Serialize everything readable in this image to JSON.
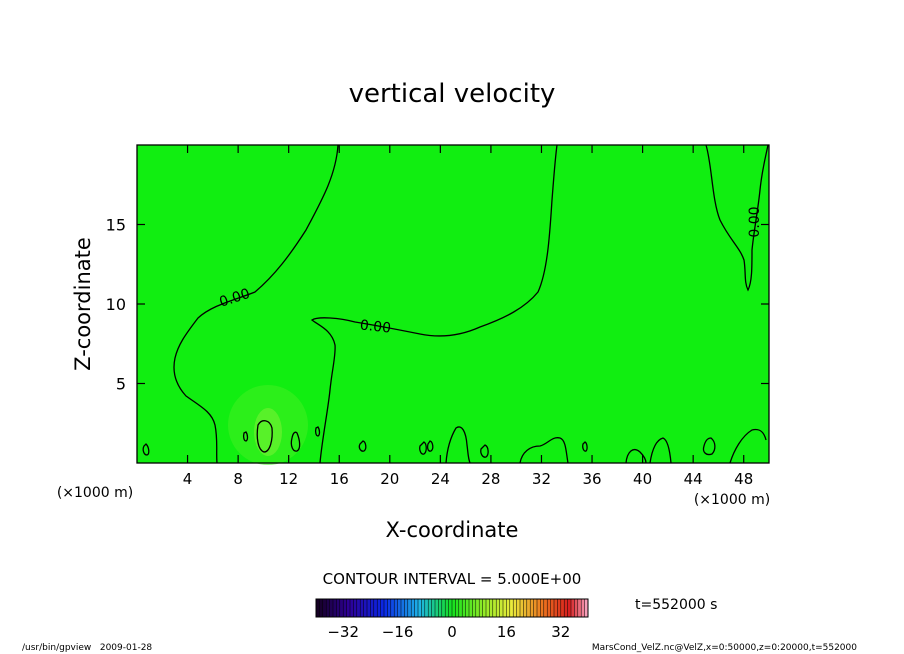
{
  "chart_data": {
    "type": "heatmap",
    "title": "vertical velocity",
    "xlabel": "X-coordinate",
    "ylabel": "Z-coordinate",
    "x_unit_left": "(×1000 m)",
    "x_unit_right": "(×1000 m)",
    "xlim": [
      0,
      50
    ],
    "ylim": [
      0,
      20
    ],
    "x_ticks": [
      4,
      8,
      12,
      16,
      20,
      24,
      28,
      32,
      36,
      40,
      44,
      48
    ],
    "x_tick_labels": [
      "4",
      "8",
      "12",
      "16",
      "20",
      "24",
      "28",
      "32",
      "36",
      "40",
      "44",
      "48"
    ],
    "y_ticks": [
      5,
      10,
      15
    ],
    "y_tick_labels": [
      "5",
      "10",
      "15"
    ],
    "contour_labels": [
      "0.00",
      "0.00",
      "0.00"
    ],
    "contour_interval_text": "CONTOUR INTERVAL = 5.000E+00",
    "time_text": "t=552000 s",
    "colorbar": {
      "range": [
        -40,
        40
      ],
      "ticks": [
        -32,
        -16,
        0,
        16,
        32
      ],
      "tick_labels": [
        "−32",
        "−16",
        "0",
        "16",
        "32"
      ]
    },
    "footer_left": "/usr/bin/gpview   2009-01-28",
    "footer_right": "MarsCond_VelZ.nc@VelZ,x=0:50000,z=0:20000,t=552000",
    "colors": {
      "field": "#11ee11",
      "contour": "#000000"
    }
  }
}
